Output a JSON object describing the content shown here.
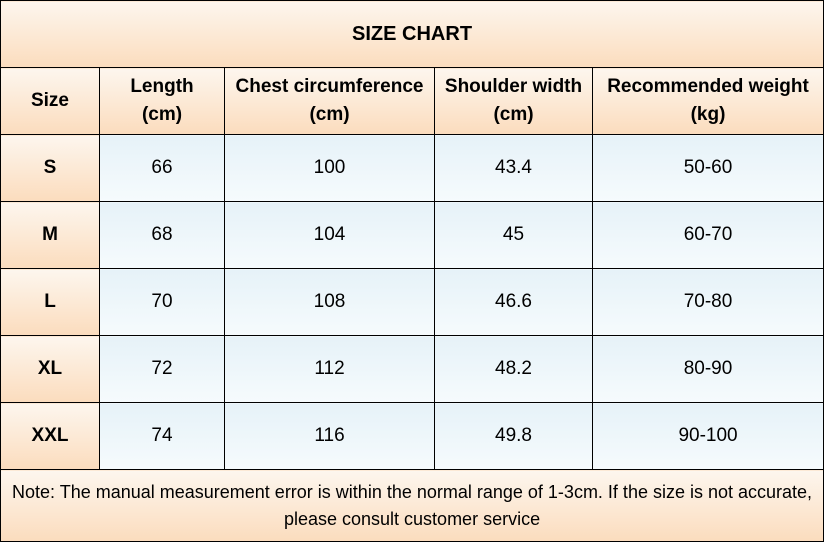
{
  "title": "SIZE CHART",
  "headers": [
    {
      "line1": "Size",
      "line2": ""
    },
    {
      "line1": "Length",
      "line2": "(cm)"
    },
    {
      "line1": "Chest circumference",
      "line2": "(cm)"
    },
    {
      "line1": "Shoulder width",
      "line2": "(cm)"
    },
    {
      "line1": "Recommended weight",
      "line2": "(kg)"
    }
  ],
  "rows": [
    {
      "size": "S",
      "length": "66",
      "chest": "100",
      "shoulder": "43.4",
      "weight": "50-60"
    },
    {
      "size": "M",
      "length": "68",
      "chest": "104",
      "shoulder": "45",
      "weight": "60-70"
    },
    {
      "size": "L",
      "length": "70",
      "chest": "108",
      "shoulder": "46.6",
      "weight": "70-80"
    },
    {
      "size": "XL",
      "length": "72",
      "chest": "112",
      "shoulder": "48.2",
      "weight": "80-90"
    },
    {
      "size": "XXL",
      "length": "74",
      "chest": "116",
      "shoulder": "49.8",
      "weight": "90-100"
    }
  ],
  "note": "Note: The manual measurement error is within the normal range of 1-3cm. If the size is not accurate, please consult customer service",
  "colors": {
    "header_bg": "#fbdcbd",
    "data_bg": "#e6f2f8",
    "border": "#000000"
  }
}
